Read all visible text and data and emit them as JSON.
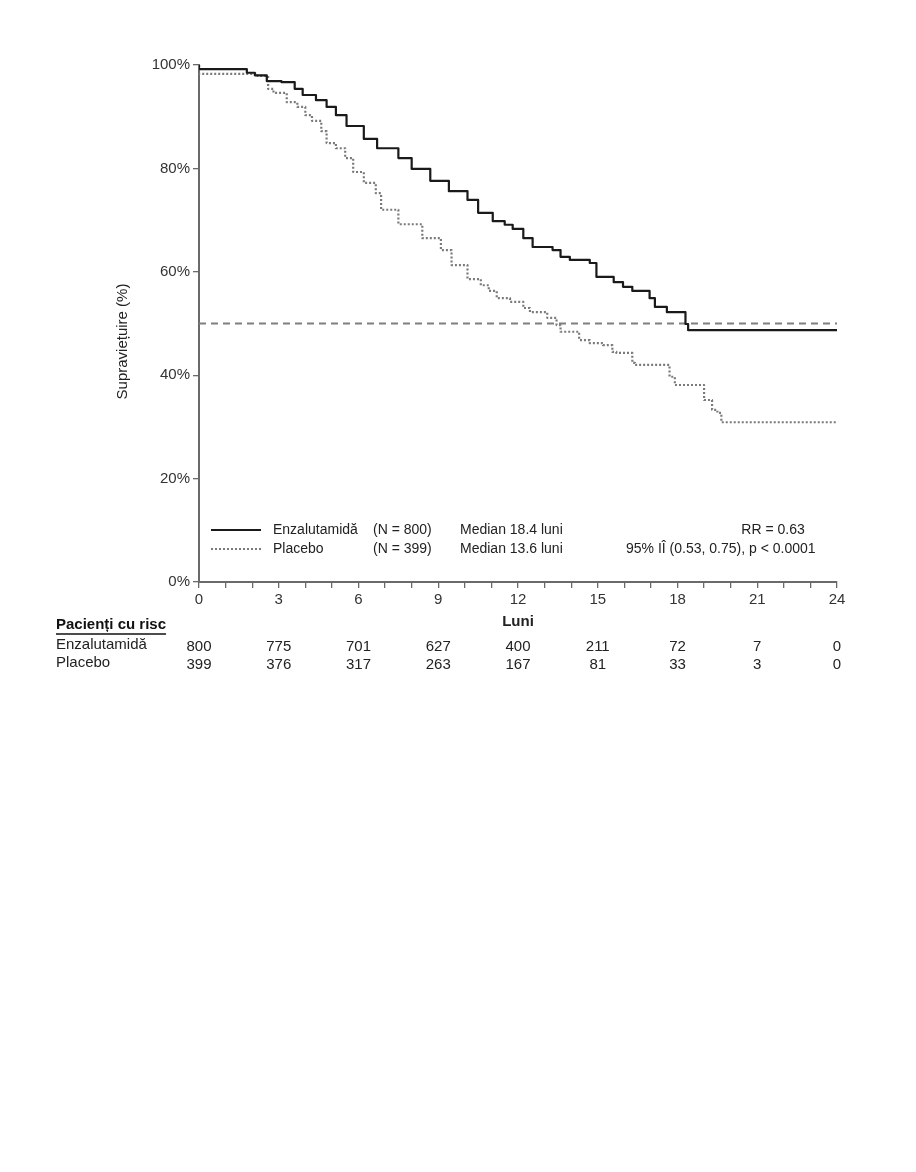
{
  "chart_data": {
    "type": "step",
    "xlabel": "Luni",
    "ylabel": "Supraviețuire (%)",
    "xlim": [
      0,
      24
    ],
    "xticks": [
      0,
      {
        "value": 1,
        "label": null
      },
      {
        "value": 2,
        "label": null
      },
      3,
      {
        "value": 4,
        "label": null
      },
      {
        "value": 5,
        "label": null
      },
      6,
      {
        "value": 7,
        "label": null
      },
      {
        "value": 8,
        "label": null
      },
      9,
      {
        "value": 10,
        "label": null
      },
      {
        "value": 11,
        "label": null
      },
      12,
      {
        "value": 13,
        "label": null
      },
      {
        "value": 14,
        "label": null
      },
      15,
      {
        "value": 16,
        "label": null
      },
      {
        "value": 17,
        "label": null
      },
      18,
      {
        "value": 19,
        "label": null
      },
      {
        "value": 20,
        "label": null
      },
      21,
      {
        "value": 22,
        "label": null
      },
      {
        "value": 23,
        "label": null
      },
      24
    ],
    "ylim": [
      0,
      100
    ],
    "yticks": [
      {
        "value": 0,
        "label": "0%"
      },
      {
        "value": 20,
        "label": "20%"
      },
      {
        "value": 40,
        "label": "40%"
      },
      {
        "value": 60,
        "label": "60%"
      },
      {
        "value": 80,
        "label": "80%"
      },
      {
        "value": 100,
        "label": "100%"
      }
    ],
    "legend": "bottom",
    "series": [
      {
        "name": "Enzalutamidă",
        "color": "#1a1a1a",
        "line_style": "solid",
        "x": [
          0,
          1.8,
          2.1,
          2.55,
          3.1,
          3.6,
          3.9,
          4.4,
          4.8,
          5.15,
          5.55,
          6.2,
          6.7,
          7.5,
          8.0,
          8.7,
          9.4,
          10.1,
          10.5,
          11.05,
          11.5,
          11.8,
          12.2,
          12.55,
          13.3,
          13.6,
          13.95,
          14.7,
          14.95,
          15.6,
          15.95,
          16.3,
          16.95,
          17.15,
          17.6,
          18.3,
          18.4,
          19.0,
          24
        ],
        "values": [
          100,
          99.2,
          98.5,
          98,
          96.9,
          96.7,
          95.4,
          94.2,
          93.2,
          91.9,
          90.3,
          88.2,
          85.7,
          83.9,
          82,
          79.9,
          77.6,
          75.6,
          73.9,
          71.4,
          69.8,
          69.1,
          68.3,
          66.5,
          64.8,
          64.2,
          62.9,
          62.3,
          61.7,
          59,
          58,
          57.1,
          56.3,
          54.9,
          53.2,
          52.2,
          49.9,
          48.7,
          48.7
        ]
      },
      {
        "name": "Placebo",
        "color": "#7a7a7a",
        "line_style": "dotted",
        "x": [
          0,
          2.2,
          2.6,
          2.8,
          3.3,
          3.7,
          4.0,
          4.25,
          4.6,
          4.8,
          5.15,
          5.5,
          5.8,
          6.2,
          6.65,
          6.85,
          7.5,
          8.4,
          9.1,
          9.5,
          10.1,
          10.6,
          10.9,
          11.2,
          11.7,
          12.2,
          12.45,
          13.1,
          13.45,
          13.6,
          14.3,
          14.7,
          15.2,
          15.55,
          15.7,
          16.3,
          16.4,
          17.7,
          17.9,
          19.0,
          19.3,
          19.5,
          19.65,
          19.7,
          24
        ],
        "values": [
          100,
          98.3,
          97.9,
          95.4,
          94.6,
          92.8,
          91.9,
          90.3,
          89.2,
          87.2,
          84.9,
          83.9,
          82,
          79.3,
          77.2,
          75.2,
          72,
          69.2,
          66.5,
          64.2,
          61.3,
          58.6,
          57.4,
          56.3,
          54.9,
          54.2,
          53,
          52.2,
          51.1,
          49.7,
          48.4,
          46.8,
          46.2,
          45.8,
          44.5,
          44.3,
          42.4,
          42,
          39.7,
          38.1,
          35.2,
          33.3,
          32.7,
          30.9,
          30.9
        ]
      }
    ],
    "ref_lines": [
      {
        "axis": "y",
        "value": 50,
        "color": "#7f7f7f",
        "line_style": "dashed"
      }
    ],
    "annotations": [
      "(N = 800)",
      "Median 18.4 luni",
      "RR = 0.63",
      "(N = 399)",
      "Median 13.6 luni",
      "95% IÎ (0.53, 0.75), p < 0.0001",
      "Pacienți cu risc",
      "Enzalutamidă",
      "800",
      "775",
      "701",
      "627",
      "400",
      "211",
      "72",
      "7",
      "0",
      "Placebo",
      "399",
      "376",
      "317",
      "263",
      "167",
      "81",
      "33",
      "3",
      "0"
    ]
  }
}
